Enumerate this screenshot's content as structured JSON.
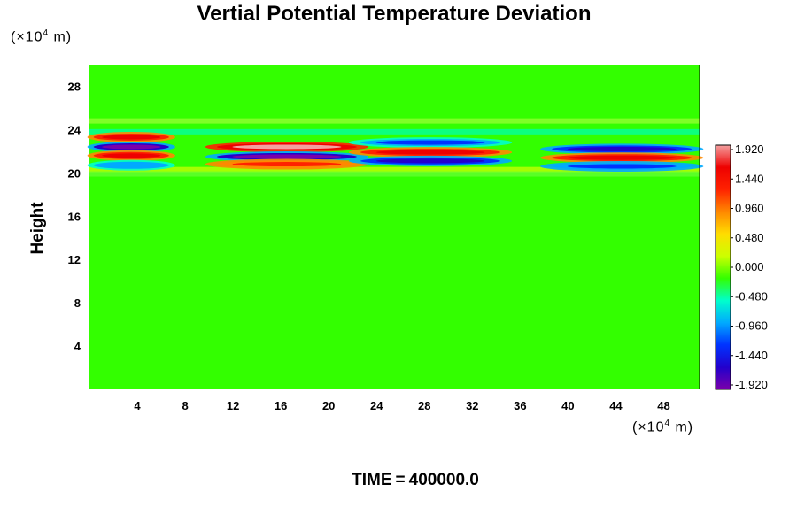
{
  "chart_data": {
    "type": "heatmap",
    "title": "Vertial Potential Temperature Deviation",
    "ylabel": "Height",
    "xlabel": "",
    "x_unit": "(×10⁴ m)",
    "y_unit": "(×10⁴ m)",
    "x_unit_parts": {
      "prefix": "(×10",
      "exp": "4",
      "suffix": " m)"
    },
    "y_unit_parts": {
      "prefix": "(×10",
      "exp": "4",
      "suffix": " m)"
    },
    "xlim": [
      0,
      51
    ],
    "ylim": [
      0,
      30
    ],
    "x_ticks": [
      4,
      8,
      12,
      16,
      20,
      24,
      28,
      32,
      36,
      40,
      44,
      48
    ],
    "y_ticks": [
      4,
      8,
      12,
      16,
      20,
      24,
      28
    ],
    "colorbar": {
      "range": [
        -1.92,
        1.92
      ],
      "tick_labels": [
        "1.920",
        "1.440",
        "0.960",
        "0.480",
        "0.000",
        "-0.480",
        "-0.960",
        "-1.440",
        "-1.920"
      ],
      "tick_values": [
        1.92,
        1.44,
        0.96,
        0.48,
        0.0,
        -0.48,
        -0.96,
        -1.44,
        -1.92
      ]
    },
    "background_value": 0.0,
    "features": [
      {
        "x_range": [
          0,
          7
        ],
        "y_levels": [
          23.3,
          22.4,
          21.6,
          20.7
        ],
        "values": [
          1.4,
          -1.9,
          1.6,
          -0.9
        ]
      },
      {
        "x_range": [
          10,
          23
        ],
        "y_levels": [
          22.4,
          21.5,
          20.8
        ],
        "values": [
          1.92,
          -1.9,
          1.3
        ]
      },
      {
        "x_range": [
          22,
          35
        ],
        "y_levels": [
          22.8,
          21.9,
          21.1
        ],
        "values": [
          -1.2,
          1.5,
          -1.6
        ]
      },
      {
        "x_range": [
          38,
          51
        ],
        "y_levels": [
          22.2,
          21.4,
          20.6
        ],
        "values": [
          -1.6,
          1.5,
          -1.3
        ]
      }
    ]
  },
  "time_label": "TIME",
  "time_eq": "=",
  "time_value": "400000.0",
  "colors": {
    "background_green": "#33ff00",
    "scale": [
      "#7a00aa",
      "#2200cc",
      "#0033ff",
      "#00aaff",
      "#00ffcc",
      "#33ff00",
      "#ccff00",
      "#ffdd00",
      "#ff8800",
      "#ff2200",
      "#ee0000",
      "#f4a0a0"
    ]
  }
}
